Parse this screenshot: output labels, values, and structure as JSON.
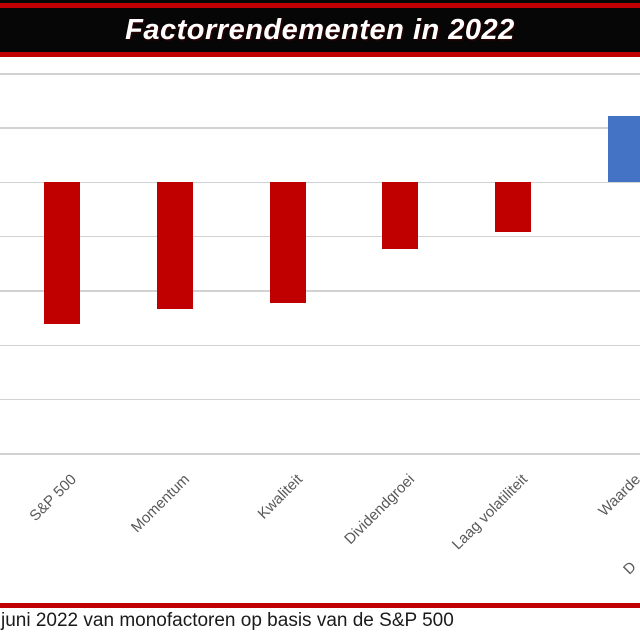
{
  "banner": {
    "title": "Factorrendementen in 2022"
  },
  "chart_data": {
    "type": "bar",
    "title": "Factorrendementen in 2022",
    "categories": [
      "S&P 500",
      "Momentum",
      "Kwaliteit",
      "Dividendgroei",
      "Laag volatiliteit",
      "Waarde"
    ],
    "values": [
      -13.1,
      -11.7,
      -11.2,
      -6.2,
      -4.6,
      6.0
    ],
    "partial_next_category": "D",
    "ylim": [
      -25,
      10
    ],
    "gridline_step": 5,
    "grid": true,
    "legend_position": "none",
    "axis_tick_labels_visible": false,
    "colors": {
      "negative_bar": "#c00000",
      "positive_bar": "#4472c4",
      "gridline": "#d2d2d2",
      "axis_label": "#595959",
      "banner_bg": "#060606",
      "banner_accent": "#c00000",
      "banner_text": "#ffffff",
      "caption_text": "#1a1a1a"
    }
  },
  "caption": {
    "text": "juni 2022 van monofactoren op basis van de S&P 500"
  }
}
